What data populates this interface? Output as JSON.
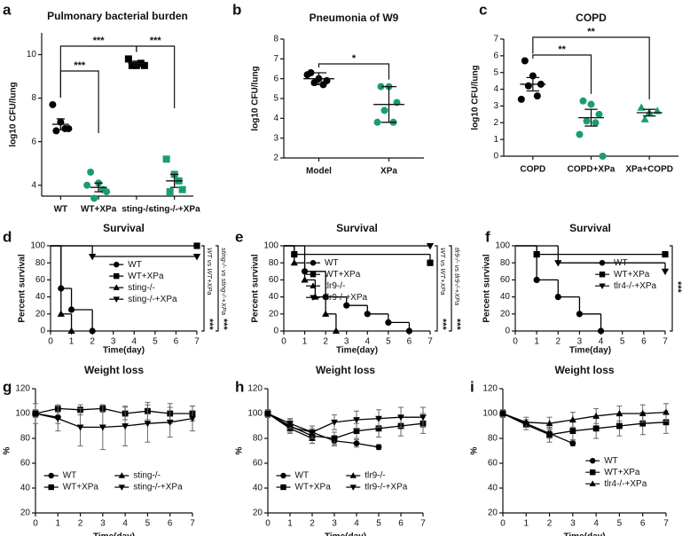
{
  "chart_data": [
    {
      "type": "dotplot",
      "panel": "a",
      "title": "Pulmonary bacterial burden",
      "y_label": "log10 CFU/lung",
      "ylim": [
        3.5,
        11
      ],
      "yticks": [
        4,
        6,
        8,
        10
      ],
      "groups": [
        {
          "name": "WT",
          "color": "#000000",
          "marker": "circle",
          "values": [
            7.7,
            6.9,
            6.6,
            6.5,
            6.6
          ],
          "mean": 6.8,
          "error": 0.25
        },
        {
          "name": "WT+XPa",
          "color": "#1a9e6e",
          "marker": "circle",
          "values": [
            4.6,
            4.1,
            3.7,
            3.4,
            3.8,
            4.0
          ],
          "mean": 3.9,
          "error": 0.2
        },
        {
          "name": "sting-/-",
          "color": "#000000",
          "marker": "square",
          "values": [
            9.8,
            9.5,
            9.5,
            9.5,
            9.6
          ],
          "mean": 9.6,
          "error": 0.1
        },
        {
          "name": "sting-/-+XPa",
          "color": "#1a9e6e",
          "marker": "square",
          "values": [
            5.2,
            4.5,
            3.8,
            3.7,
            4.2
          ],
          "mean": 4.2,
          "error": 0.3
        }
      ],
      "comparisons": [
        {
          "between": [
            "WT",
            "WT+XPa"
          ],
          "label": "***"
        },
        {
          "between": [
            "WT",
            "sting-/-"
          ],
          "label": "***"
        },
        {
          "between": [
            "sting-/-",
            "sting-/-+XPa"
          ],
          "label": "***"
        }
      ]
    },
    {
      "type": "dotplot",
      "panel": "b",
      "title": "Pneumonia of W9",
      "y_label": "log10 CFU/lung",
      "ylim": [
        2,
        8
      ],
      "yticks": [
        2,
        3,
        4,
        5,
        6,
        7,
        8
      ],
      "groups": [
        {
          "name": "Model",
          "color": "#000000",
          "marker": "circle",
          "values": [
            6.3,
            6.0,
            5.9,
            5.8,
            5.7,
            6.2
          ],
          "mean": 6.0,
          "error": 0.3
        },
        {
          "name": "XPa",
          "color": "#1a9e6e",
          "marker": "circle",
          "values": [
            5.6,
            5.6,
            4.8,
            4.4,
            3.8,
            3.8
          ],
          "mean": 4.7,
          "error": 0.9
        }
      ],
      "comparisons": [
        {
          "between": [
            "Model",
            "XPa"
          ],
          "label": "*"
        }
      ]
    },
    {
      "type": "dotplot",
      "panel": "c",
      "title": "COPD",
      "y_label": "log10 CFU/lung",
      "ylim": [
        0,
        7
      ],
      "yticks": [
        0,
        1,
        2,
        3,
        4,
        5,
        6,
        7
      ],
      "groups": [
        {
          "name": "COPD",
          "color": "#000000",
          "marker": "circle",
          "values": [
            5.7,
            4.8,
            4.3,
            4.2,
            3.6,
            3.4
          ],
          "mean": 4.3,
          "error": 0.4
        },
        {
          "name": "COPD+XPa",
          "color": "#1a9e6e",
          "marker": "circle",
          "values": [
            3.3,
            3.1,
            2.5,
            2.1,
            2.0,
            1.3,
            0.0
          ],
          "mean": 2.3,
          "error": 0.5
        },
        {
          "name": "XPa+COPD",
          "color": "#1a9e6e",
          "marker": "triangle-up",
          "values": [
            2.9,
            2.6,
            2.7,
            2.2
          ],
          "mean": 2.6,
          "error": 0.2
        }
      ],
      "comparisons": [
        {
          "between": [
            "COPD",
            "COPD+XPa"
          ],
          "label": "**"
        },
        {
          "between": [
            "COPD",
            "XPa+COPD"
          ],
          "label": "**"
        }
      ]
    },
    {
      "type": "survival",
      "panel": "d",
      "title": "Survival",
      "y_label": "Percent survival",
      "x_label": "Time(day)",
      "xlim": [
        0,
        7
      ],
      "xticks": [
        0,
        1,
        2,
        3,
        4,
        5,
        6,
        7
      ],
      "ylim": [
        0,
        100
      ],
      "yticks": [
        0,
        20,
        40,
        60,
        80,
        100
      ],
      "legend": "center",
      "series": [
        {
          "name": "WT",
          "color": "#000000",
          "marker": "circle",
          "x": [
            0,
            0.5,
            1,
            2
          ],
          "values": [
            100,
            50,
            25,
            0
          ]
        },
        {
          "name": "WT+XPa",
          "color": "#000000",
          "marker": "square",
          "x": [
            0,
            7
          ],
          "values": [
            100,
            100
          ]
        },
        {
          "name": "sting-/-",
          "color": "#000000",
          "marker": "triangle-up",
          "x": [
            0,
            0.5,
            1
          ],
          "values": [
            100,
            20,
            0
          ]
        },
        {
          "name": "sting-/-+XPa",
          "color": "#000000",
          "marker": "triangle-down",
          "x": [
            0,
            2,
            7
          ],
          "values": [
            100,
            87.5,
            87.5
          ]
        }
      ],
      "annotations": [
        {
          "text": "WT vs WT+XPa",
          "label": "***"
        },
        {
          "text": "sting-/- vs sting-/-+XPa",
          "label": "***"
        }
      ]
    },
    {
      "type": "survival",
      "panel": "e",
      "title": "Survival",
      "y_label": "Percent survival",
      "x_label": "Time(day)",
      "xlim": [
        0,
        7
      ],
      "xticks": [
        0,
        1,
        2,
        3,
        4,
        5,
        6,
        7
      ],
      "ylim": [
        0,
        100
      ],
      "yticks": [
        0,
        20,
        40,
        60,
        80,
        100
      ],
      "legend": "upper left",
      "series": [
        {
          "name": "WT",
          "color": "#000000",
          "marker": "circle",
          "x": [
            0,
            1,
            2,
            3,
            4,
            5,
            6
          ],
          "values": [
            100,
            70,
            40,
            30,
            20,
            10,
            0
          ]
        },
        {
          "name": "WT+XPa",
          "color": "#000000",
          "marker": "square",
          "x": [
            0,
            0.5,
            7
          ],
          "values": [
            100,
            90,
            80
          ]
        },
        {
          "name": "tlr9-/-",
          "color": "#000000",
          "marker": "triangle-up",
          "x": [
            0,
            0.5,
            1,
            1.5,
            2,
            2.5
          ],
          "values": [
            100,
            80,
            60,
            40,
            20,
            0
          ]
        },
        {
          "name": "tlr9-/-+XPa",
          "color": "#000000",
          "marker": "triangle-down",
          "x": [
            0,
            7
          ],
          "values": [
            100,
            100
          ]
        }
      ],
      "annotations": [
        {
          "text": "WT vs WT+XPa",
          "label": "***"
        },
        {
          "text": "tlr9-/- vs tlr9-/-+XPa",
          "label": "***"
        }
      ]
    },
    {
      "type": "survival",
      "panel": "f",
      "title": "Survival",
      "y_label": "Percent survival",
      "x_label": "Time(day)",
      "xlim": [
        0,
        7
      ],
      "xticks": [
        0,
        1,
        2,
        3,
        4,
        5,
        6,
        7
      ],
      "ylim": [
        0,
        100
      ],
      "yticks": [
        0,
        20,
        40,
        60,
        80,
        100
      ],
      "legend": "upper right",
      "series": [
        {
          "name": "WT",
          "color": "#000000",
          "marker": "circle",
          "x": [
            0,
            1,
            2,
            3,
            4
          ],
          "values": [
            100,
            60,
            40,
            20,
            0
          ]
        },
        {
          "name": "WT+XPa",
          "color": "#000000",
          "marker": "square",
          "x": [
            0,
            1,
            7
          ],
          "values": [
            100,
            90,
            90
          ]
        },
        {
          "name": "tlr4-/-+XPa",
          "color": "#000000",
          "marker": "triangle-down",
          "x": [
            0,
            2,
            7
          ],
          "values": [
            100,
            80,
            70
          ]
        }
      ],
      "annotations": [
        {
          "label": "***"
        }
      ]
    },
    {
      "type": "line",
      "panel": "g",
      "title": "Weight loss",
      "y_label": "%",
      "x_label": "Time(day)",
      "x": [
        0,
        1,
        2,
        3,
        4,
        5,
        6,
        7
      ],
      "xlim": [
        0,
        7
      ],
      "xticks": [
        0,
        1,
        2,
        3,
        4,
        5,
        6,
        7
      ],
      "ylim": [
        20,
        120
      ],
      "yticks": [
        20,
        40,
        60,
        80,
        100,
        120
      ],
      "legend": "lower",
      "series": [
        {
          "name": "WT",
          "color": "#000000",
          "marker": "circle",
          "values": [
            100,
            97,
            null,
            null,
            null,
            null,
            null,
            null
          ],
          "errors": [
            2,
            5,
            null,
            null,
            null,
            null,
            null,
            null
          ]
        },
        {
          "name": "WT+XPa",
          "color": "#000000",
          "marker": "square",
          "values": [
            100,
            104,
            103,
            104,
            100,
            102,
            100,
            100
          ],
          "errors": [
            3,
            3,
            4,
            3,
            5,
            7,
            8,
            6
          ]
        },
        {
          "name": "sting-/-",
          "color": "#000000",
          "marker": "triangle-up",
          "values": [
            100,
            null,
            null,
            null,
            null,
            null,
            null,
            null
          ],
          "errors": [
            3,
            null,
            null,
            null,
            null,
            null,
            null,
            null
          ]
        },
        {
          "name": "sting-/-+XPa",
          "color": "#000000",
          "marker": "triangle-down",
          "values": [
            100,
            96,
            89,
            89,
            90,
            92,
            93,
            96
          ],
          "errors": [
            8,
            10,
            15,
            18,
            16,
            15,
            12,
            10
          ]
        }
      ]
    },
    {
      "type": "line",
      "panel": "h",
      "title": "Weight loss",
      "y_label": "%",
      "x_label": "Time(day)",
      "x": [
        0,
        1,
        2,
        3,
        4,
        5,
        6,
        7
      ],
      "xlim": [
        0,
        7
      ],
      "xticks": [
        0,
        1,
        2,
        3,
        4,
        5,
        6,
        7
      ],
      "ylim": [
        20,
        120
      ],
      "yticks": [
        20,
        40,
        60,
        80,
        100,
        120
      ],
      "legend": "lower",
      "series": [
        {
          "name": "WT",
          "color": "#000000",
          "marker": "circle",
          "values": [
            100,
            89,
            85,
            78,
            76,
            73,
            null,
            null
          ],
          "errors": [
            3,
            4,
            5,
            4,
            3,
            2,
            null,
            null
          ]
        },
        {
          "name": "WT+XPa",
          "color": "#000000",
          "marker": "square",
          "values": [
            100,
            90,
            82,
            80,
            86,
            88,
            90,
            92
          ],
          "errors": [
            3,
            5,
            6,
            5,
            6,
            7,
            8,
            8
          ]
        },
        {
          "name": "tlr9-/-",
          "color": "#000000",
          "marker": "triangle-up",
          "values": [
            100,
            88,
            80,
            null,
            null,
            null,
            null,
            null
          ],
          "errors": [
            3,
            4,
            4,
            null,
            null,
            null,
            null,
            null
          ]
        },
        {
          "name": "tlr9-/-+XPa",
          "color": "#000000",
          "marker": "triangle-down",
          "values": [
            100,
            92,
            85,
            93,
            95,
            96,
            97,
            97
          ],
          "errors": [
            3,
            4,
            5,
            6,
            7,
            7,
            8,
            8
          ]
        }
      ]
    },
    {
      "type": "line",
      "panel": "i",
      "title": "Weight loss",
      "y_label": "%",
      "x_label": "Time(day)",
      "x": [
        0,
        1,
        2,
        3,
        4,
        5,
        6,
        7
      ],
      "xlim": [
        0,
        7
      ],
      "xticks": [
        0,
        1,
        2,
        3,
        4,
        5,
        6,
        7
      ],
      "ylim": [
        20,
        120
      ],
      "yticks": [
        20,
        40,
        60,
        80,
        100,
        120
      ],
      "legend": "lower right",
      "series": [
        {
          "name": "WT",
          "color": "#000000",
          "marker": "circle",
          "values": [
            100,
            92,
            84,
            76,
            null,
            null,
            null,
            null
          ],
          "errors": [
            3,
            3,
            4,
            2,
            null,
            null,
            null,
            null
          ]
        },
        {
          "name": "WT+XPa",
          "color": "#000000",
          "marker": "square",
          "values": [
            100,
            91,
            83,
            86,
            88,
            90,
            92,
            93
          ],
          "errors": [
            3,
            4,
            6,
            7,
            8,
            8,
            9,
            9
          ]
        },
        {
          "name": "tlr4-/-+XPa",
          "color": "#000000",
          "marker": "triangle-up",
          "values": [
            100,
            93,
            92,
            95,
            98,
            100,
            100,
            101
          ],
          "errors": [
            3,
            4,
            5,
            6,
            6,
            6,
            7,
            7
          ]
        }
      ]
    }
  ]
}
